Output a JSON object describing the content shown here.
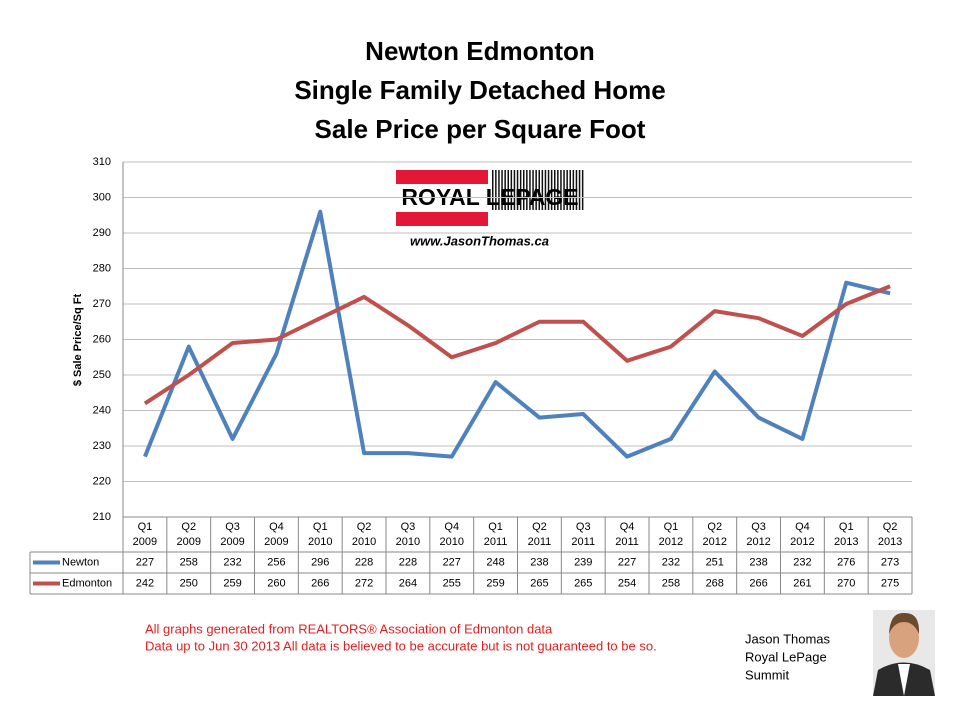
{
  "chart_data": {
    "type": "line",
    "title": [
      "Newton Edmonton",
      "Single Family Detached Home",
      "Sale Price per Square Foot"
    ],
    "y_label": "$ Sale Price/Sq Ft",
    "categories": [
      [
        "Q1",
        "2009"
      ],
      [
        "Q2",
        "2009"
      ],
      [
        "Q3",
        "2009"
      ],
      [
        "Q4",
        "2009"
      ],
      [
        "Q1",
        "2010"
      ],
      [
        "Q2",
        "2010"
      ],
      [
        "Q3",
        "2010"
      ],
      [
        "Q4",
        "2010"
      ],
      [
        "Q1",
        "2011"
      ],
      [
        "Q2",
        "2011"
      ],
      [
        "Q3",
        "2011"
      ],
      [
        "Q4",
        "2011"
      ],
      [
        "Q1",
        "2012"
      ],
      [
        "Q2",
        "2012"
      ],
      [
        "Q3",
        "2012"
      ],
      [
        "Q4",
        "2012"
      ],
      [
        "Q1",
        "2013"
      ],
      [
        "Q2",
        "2013"
      ]
    ],
    "series": [
      {
        "name": "Newton",
        "color": "#4f81bd",
        "values": [
          227,
          258,
          232,
          256,
          296,
          228,
          228,
          227,
          248,
          238,
          239,
          227,
          232,
          251,
          238,
          232,
          276,
          273
        ]
      },
      {
        "name": "Edmonton",
        "color": "#c0504d",
        "values": [
          242,
          250,
          259,
          260,
          266,
          272,
          264,
          255,
          259,
          265,
          265,
          254,
          258,
          268,
          266,
          261,
          270,
          275
        ]
      }
    ],
    "ylim": [
      210,
      310
    ],
    "yticks": [
      210,
      220,
      230,
      240,
      250,
      260,
      270,
      280,
      290,
      300,
      310
    ],
    "grid": true,
    "logo": {
      "brand": "ROYAL LEPAGE",
      "url": "www.JasonThomas.ca"
    },
    "footnotes": [
      "All graphs generated from REALTORS® Association of Edmonton data",
      "Data up to  Jun 30  2013  All data is believed to be accurate but is not guaranteed to be so."
    ],
    "signature": [
      "Jason Thomas",
      "Royal LePage",
      "Summit"
    ]
  }
}
